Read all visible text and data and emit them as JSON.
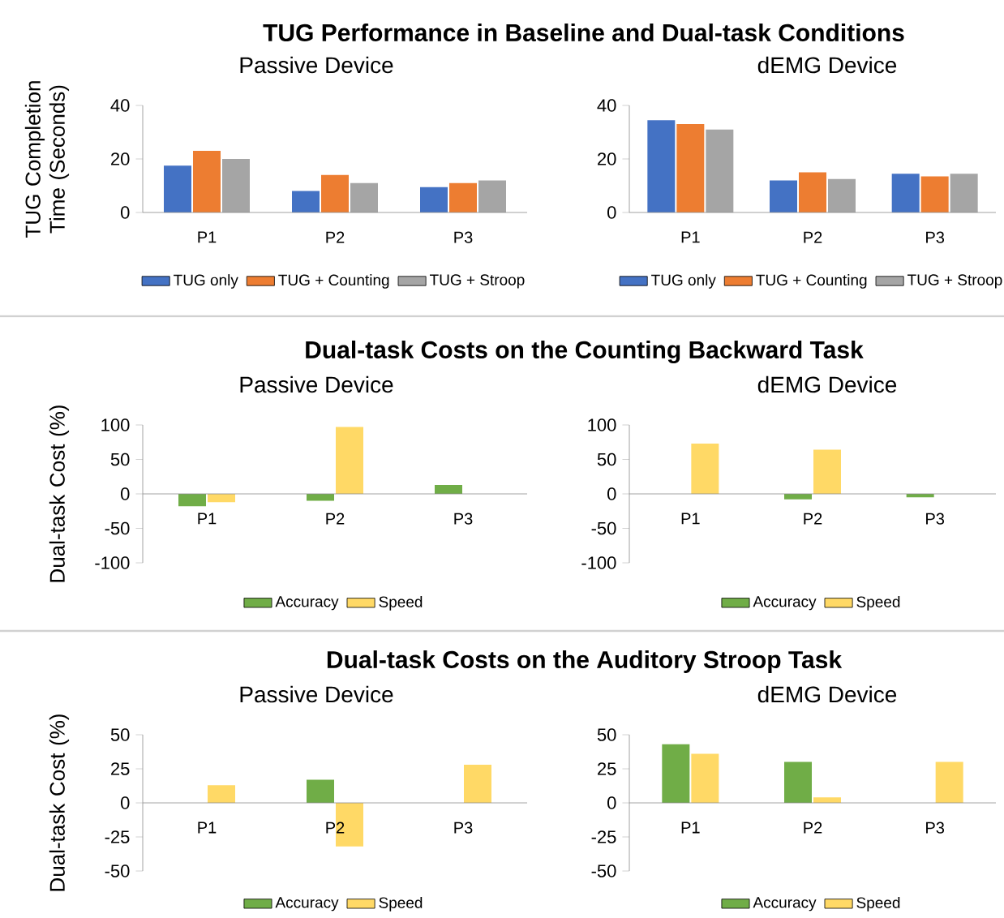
{
  "chart_data": [
    {
      "type": "bar",
      "title": "TUG Performance in Baseline and Dual-task Conditions",
      "subtitle": "Passive Device",
      "ylabel": "TUG Completion Time (Seconds)",
      "categories": [
        "P1",
        "P2",
        "P3"
      ],
      "ylim": [
        0,
        40
      ],
      "yticks": [
        0,
        20,
        40
      ],
      "legend": "bottom",
      "series": [
        {
          "name": "TUG only",
          "color": "#4472c4",
          "values": [
            17.5,
            8,
            9.5
          ]
        },
        {
          "name": "TUG + Counting",
          "color": "#ed7d31",
          "values": [
            23,
            14,
            11
          ]
        },
        {
          "name": "TUG + Stroop",
          "color": "#a5a5a5",
          "values": [
            20,
            11,
            12
          ]
        }
      ]
    },
    {
      "type": "bar",
      "subtitle": "dEMG Device",
      "categories": [
        "P1",
        "P2",
        "P3"
      ],
      "ylim": [
        0,
        40
      ],
      "yticks": [
        0,
        20,
        40
      ],
      "legend": "bottom",
      "series": [
        {
          "name": "TUG only",
          "color": "#4472c4",
          "values": [
            34.5,
            12,
            14.5
          ]
        },
        {
          "name": "TUG + Counting",
          "color": "#ed7d31",
          "values": [
            33,
            15,
            13.5
          ]
        },
        {
          "name": "TUG + Stroop",
          "color": "#a5a5a5",
          "values": [
            31,
            12.5,
            14.5
          ]
        }
      ]
    },
    {
      "type": "bar",
      "title": "Dual-task Costs on the Counting Backward Task",
      "subtitle": "Passive Device",
      "ylabel": "Dual-task Cost (%)",
      "categories": [
        "P1",
        "P2",
        "P3"
      ],
      "ylim": [
        -100,
        100
      ],
      "yticks": [
        -100,
        -50,
        0,
        50,
        100
      ],
      "legend": "bottom",
      "series": [
        {
          "name": "Accuracy",
          "color": "#70ad47",
          "values": [
            -18,
            -10,
            13
          ]
        },
        {
          "name": "Speed",
          "color": "#ffd966",
          "values": [
            -12,
            97,
            null
          ]
        }
      ]
    },
    {
      "type": "bar",
      "subtitle": "dEMG Device",
      "categories": [
        "P1",
        "P2",
        "P3"
      ],
      "ylim": [
        -100,
        100
      ],
      "yticks": [
        -100,
        -50,
        0,
        50,
        100
      ],
      "legend": "bottom",
      "series": [
        {
          "name": "Accuracy",
          "color": "#70ad47",
          "values": [
            null,
            -8,
            -5
          ]
        },
        {
          "name": "Speed",
          "color": "#ffd966",
          "values": [
            73,
            64,
            null
          ]
        }
      ]
    },
    {
      "type": "bar",
      "title": "Dual-task Costs on the Auditory Stroop Task",
      "subtitle": "Passive Device",
      "ylabel": "Dual-task Cost (%)",
      "categories": [
        "P1",
        "P2",
        "P3"
      ],
      "ylim": [
        -50,
        50
      ],
      "yticks": [
        -50,
        -25,
        0,
        25,
        50
      ],
      "legend": "bottom",
      "series": [
        {
          "name": "Accuracy",
          "color": "#70ad47",
          "values": [
            null,
            17,
            null
          ]
        },
        {
          "name": "Speed",
          "color": "#ffd966",
          "values": [
            13,
            -32,
            28
          ]
        }
      ]
    },
    {
      "type": "bar",
      "subtitle": "dEMG Device",
      "categories": [
        "P1",
        "P2",
        "P3"
      ],
      "ylim": [
        -50,
        50
      ],
      "yticks": [
        -50,
        -25,
        0,
        25,
        50
      ],
      "legend": "bottom",
      "series": [
        {
          "name": "Accuracy",
          "color": "#70ad47",
          "values": [
            43,
            30,
            null
          ]
        },
        {
          "name": "Speed",
          "color": "#ffd966",
          "values": [
            36,
            4,
            30
          ]
        }
      ]
    }
  ]
}
